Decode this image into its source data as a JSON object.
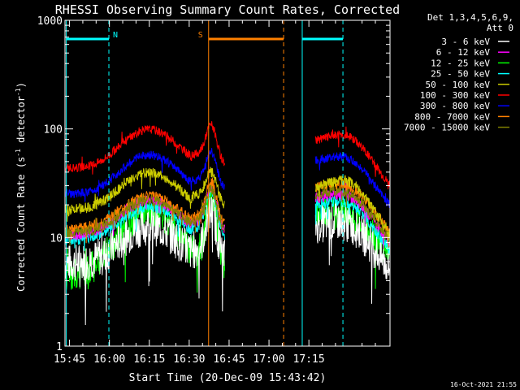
{
  "chart_data": {
    "type": "line",
    "title": "RHESSI Observing Summary Count Rates, Corrected",
    "xlabel": "Start Time (20-Dec-09 15:43:42)",
    "ylabel_main": "Corrected Count Rate (s",
    "ylabel_sup1": "-1",
    "ylabel_mid": " detector",
    "ylabel_sup2": "-1",
    "ylabel_end": ")",
    "yscale": "log",
    "ylim": [
      1,
      1000
    ],
    "xlim_min": [
      -1.7,
      120.5
    ],
    "x_ticks": [
      {
        "v": 0,
        "label": "15:45"
      },
      {
        "v": 15,
        "label": "16:00"
      },
      {
        "v": 30,
        "label": "16:15"
      },
      {
        "v": 45,
        "label": "16:30"
      },
      {
        "v": 60,
        "label": "16:45"
      },
      {
        "v": 75,
        "label": "17:00"
      },
      {
        "v": 90,
        "label": "17:15"
      }
    ],
    "y_ticks": [
      {
        "v": 1,
        "label": "1"
      },
      {
        "v": 10,
        "label": "10"
      },
      {
        "v": 100,
        "label": "100"
      },
      {
        "v": 1000,
        "label": "1000"
      }
    ],
    "legend_title": [
      "Det 1,3,4,5,6,9,",
      "Att 0"
    ],
    "legend_position": "right",
    "series": [
      {
        "name": "3 - 6 keV",
        "color": "#ffffff",
        "base": 5.8,
        "amp": 2.2,
        "flare": 14,
        "post": 12,
        "noise": 0.18
      },
      {
        "name": "6 - 12 keV",
        "color": "#ff00ff",
        "base": 10.5,
        "amp": 2.1,
        "flare": 23,
        "post": 21,
        "noise": 0.05
      },
      {
        "name": "12 - 25 keV",
        "color": "#00ff00",
        "base": 4.5,
        "amp": 3.8,
        "flare": 20,
        "post": 17,
        "noise": 0.15
      },
      {
        "name": "25 - 50 keV",
        "color": "#00ffff",
        "base": 9.5,
        "amp": 2.0,
        "flare": 21,
        "post": 18,
        "noise": 0.05
      },
      {
        "name": "50 - 100 keV",
        "color": "#cccc00",
        "base": 18,
        "amp": 2.2,
        "flare": 30,
        "post": 25,
        "noise": 0.05
      },
      {
        "name": "100 - 300 keV",
        "color": "#ff0000",
        "base": 43,
        "amp": 2.3,
        "flare": 85,
        "post": 70,
        "noise": 0.04
      },
      {
        "name": "300 - 800 keV",
        "color": "#0000ff",
        "base": 25,
        "amp": 2.3,
        "flare": 48,
        "post": 46,
        "noise": 0.04
      },
      {
        "name": "800 - 7000 keV",
        "color": "#ff8000",
        "base": 12,
        "amp": 2.0,
        "flare": 26,
        "post": 27,
        "noise": 0.05
      },
      {
        "name": "7000 - 15000 keV",
        "color": "#808000",
        "base": 11,
        "amp": 2.0,
        "flare": 22,
        "post": 23,
        "noise": 0.05
      }
    ],
    "segments": [
      [
        -1.7,
        58.5
      ],
      [
        92.5,
        120.5
      ]
    ],
    "markers": [
      {
        "kind": "solid",
        "color": "#00ffff",
        "x": -1.2
      },
      {
        "kind": "dashed",
        "color": "#00ffff",
        "x": 14.8
      },
      {
        "kind": "solid",
        "color": "#ff8000",
        "x": 52.3
      },
      {
        "kind": "dashed",
        "color": "#ff8000",
        "x": 80.5
      },
      {
        "kind": "solid",
        "color": "#00ffff",
        "x": 87.5
      },
      {
        "kind": "dashed",
        "color": "#00ffff",
        "x": 102.8
      }
    ],
    "bars": [
      {
        "color": "#00ffff",
        "x0": -1.2,
        "x1": 14.8,
        "label": "N"
      },
      {
        "color": "#ff8000",
        "x0": 52.3,
        "x1": 80.5,
        "label": "S"
      },
      {
        "color": "#00ffff",
        "x0": 87.5,
        "x1": 102.8,
        "label": ""
      }
    ]
  },
  "footer": {
    "timestamp": "16-Oct-2021 21:55"
  }
}
